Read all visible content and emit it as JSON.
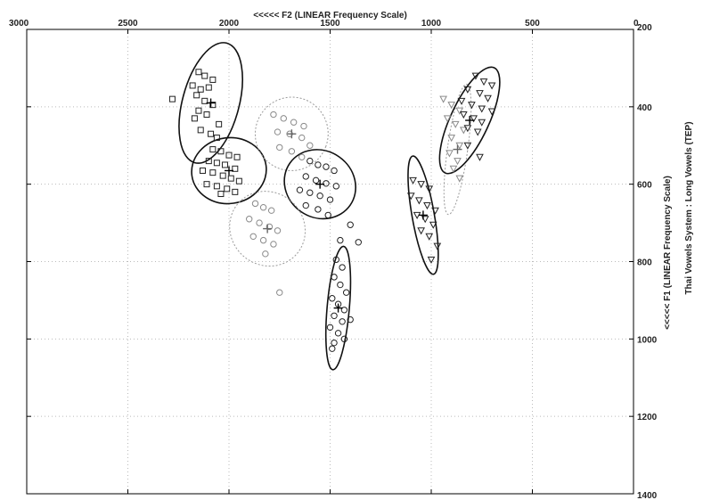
{
  "chart_data": {
    "type": "scatter",
    "title": "",
    "xlabel": "<<<<< F2 (LINEAR Frequency Scale)",
    "ylabel": "<<<<< F1 (LINEAR Frequency Scale)",
    "side_title": "Thai Vowels System : Long Vowels (TEP)",
    "xlim": [
      3000,
      0
    ],
    "ylim": [
      1400,
      200
    ],
    "x_reversed": true,
    "y_reversed": true,
    "x_axis_position": "top",
    "y_axis_position": "right",
    "x_ticks": [
      3000,
      2500,
      2000,
      1500,
      1000,
      500,
      0
    ],
    "y_ticks": [
      200,
      400,
      600,
      800,
      1000,
      1200,
      1400
    ],
    "grid": true,
    "grid_style": "dotted",
    "series": [
      {
        "marker": "square",
        "style": "solid",
        "center": [
          2090,
          390
        ],
        "radii": [
          140,
          160
        ],
        "angle": 15,
        "points": [
          [
            2150,
            310
          ],
          [
            2120,
            320
          ],
          [
            2080,
            330
          ],
          [
            2180,
            345
          ],
          [
            2140,
            355
          ],
          [
            2100,
            350
          ],
          [
            2160,
            370
          ],
          [
            2120,
            385
          ],
          [
            2080,
            395
          ],
          [
            2150,
            410
          ],
          [
            2110,
            420
          ],
          [
            2170,
            430
          ],
          [
            2050,
            445
          ],
          [
            2140,
            460
          ],
          [
            2090,
            470
          ],
          [
            2060,
            480
          ],
          [
            2280,
            380
          ]
        ]
      },
      {
        "marker": "square",
        "style": "solid",
        "center": [
          2000,
          565
        ],
        "radii": [
          185,
          85
        ],
        "angle": -8,
        "points": [
          [
            2080,
            510
          ],
          [
            2040,
            515
          ],
          [
            2000,
            525
          ],
          [
            1960,
            530
          ],
          [
            2100,
            540
          ],
          [
            2060,
            545
          ],
          [
            2020,
            550
          ],
          [
            1970,
            560
          ],
          [
            2130,
            565
          ],
          [
            2080,
            570
          ],
          [
            2030,
            578
          ],
          [
            1990,
            585
          ],
          [
            1950,
            592
          ],
          [
            2110,
            600
          ],
          [
            2060,
            605
          ],
          [
            2010,
            612
          ],
          [
            1970,
            620
          ],
          [
            2040,
            625
          ]
        ]
      },
      {
        "marker": "circle",
        "style": "dotted",
        "center": [
          1690,
          470
        ],
        "radii": [
          180,
          95
        ],
        "angle": 20,
        "points": [
          [
            1780,
            420
          ],
          [
            1730,
            430
          ],
          [
            1680,
            440
          ],
          [
            1630,
            450
          ],
          [
            1760,
            465
          ],
          [
            1700,
            470
          ],
          [
            1640,
            480
          ],
          [
            1600,
            500
          ],
          [
            1750,
            505
          ],
          [
            1690,
            515
          ],
          [
            1640,
            530
          ]
        ]
      },
      {
        "marker": "circle",
        "style": "solid",
        "center": [
          1550,
          600
        ],
        "radii": [
          165,
          95
        ],
        "angle": -55,
        "points": [
          [
            1600,
            540
          ],
          [
            1560,
            550
          ],
          [
            1520,
            555
          ],
          [
            1480,
            565
          ],
          [
            1620,
            580
          ],
          [
            1570,
            590
          ],
          [
            1520,
            598
          ],
          [
            1470,
            605
          ],
          [
            1650,
            615
          ],
          [
            1600,
            622
          ],
          [
            1550,
            630
          ],
          [
            1500,
            640
          ],
          [
            1620,
            655
          ],
          [
            1560,
            665
          ],
          [
            1510,
            680
          ],
          [
            1400,
            705
          ]
        ]
      },
      {
        "marker": "circle",
        "style": "dotted",
        "center": [
          1810,
          715
        ],
        "radii": [
          180,
          100
        ],
        "angle": -50,
        "points": [
          [
            1870,
            650
          ],
          [
            1830,
            660
          ],
          [
            1790,
            668
          ],
          [
            1900,
            690
          ],
          [
            1850,
            700
          ],
          [
            1800,
            710
          ],
          [
            1760,
            720
          ],
          [
            1880,
            735
          ],
          [
            1830,
            745
          ],
          [
            1780,
            755
          ],
          [
            1820,
            780
          ],
          [
            1750,
            880
          ]
        ]
      },
      {
        "marker": "circle",
        "style": "solid",
        "center": [
          1460,
          920
        ],
        "radii": [
          55,
          160
        ],
        "angle": 5,
        "points": [
          [
            1470,
            795
          ],
          [
            1440,
            815
          ],
          [
            1480,
            840
          ],
          [
            1450,
            860
          ],
          [
            1420,
            880
          ],
          [
            1490,
            895
          ],
          [
            1460,
            910
          ],
          [
            1430,
            925
          ],
          [
            1480,
            940
          ],
          [
            1440,
            955
          ],
          [
            1400,
            950
          ],
          [
            1500,
            970
          ],
          [
            1460,
            985
          ],
          [
            1430,
            1000
          ],
          [
            1480,
            1010
          ],
          [
            1490,
            1025
          ],
          [
            1360,
            750
          ],
          [
            1450,
            745
          ]
        ]
      },
      {
        "marker": "triangle",
        "style": "solid",
        "center": [
          1040,
          680
        ],
        "radii": [
          55,
          155
        ],
        "angle": -10,
        "points": [
          [
            1090,
            590
          ],
          [
            1050,
            600
          ],
          [
            1010,
            612
          ],
          [
            1100,
            630
          ],
          [
            1060,
            642
          ],
          [
            1020,
            655
          ],
          [
            980,
            668
          ],
          [
            1070,
            680
          ],
          [
            1030,
            690
          ],
          [
            990,
            705
          ],
          [
            1050,
            720
          ],
          [
            1010,
            735
          ],
          [
            970,
            760
          ],
          [
            1000,
            795
          ]
        ]
      },
      {
        "marker": "triangle",
        "style": "dotted",
        "center": [
          870,
          510
        ],
        "radii": [
          50,
          170
        ],
        "angle": 8,
        "points": [
          [
            940,
            380
          ],
          [
            900,
            395
          ],
          [
            860,
            410
          ],
          [
            920,
            430
          ],
          [
            880,
            445
          ],
          [
            840,
            460
          ],
          [
            900,
            480
          ],
          [
            860,
            500
          ],
          [
            910,
            520
          ],
          [
            870,
            540
          ],
          [
            890,
            560
          ],
          [
            860,
            585
          ]
        ]
      },
      {
        "marker": "triangle",
        "style": "solid",
        "center": [
          810,
          435
        ],
        "radii": [
          95,
          150
        ],
        "angle": 25,
        "points": [
          [
            780,
            320
          ],
          [
            740,
            335
          ],
          [
            700,
            345
          ],
          [
            820,
            355
          ],
          [
            760,
            365
          ],
          [
            720,
            378
          ],
          [
            850,
            385
          ],
          [
            800,
            395
          ],
          [
            750,
            405
          ],
          [
            700,
            412
          ],
          [
            840,
            420
          ],
          [
            790,
            430
          ],
          [
            750,
            440
          ],
          [
            820,
            455
          ],
          [
            770,
            465
          ],
          [
            820,
            500
          ],
          [
            760,
            530
          ]
        ]
      }
    ]
  }
}
